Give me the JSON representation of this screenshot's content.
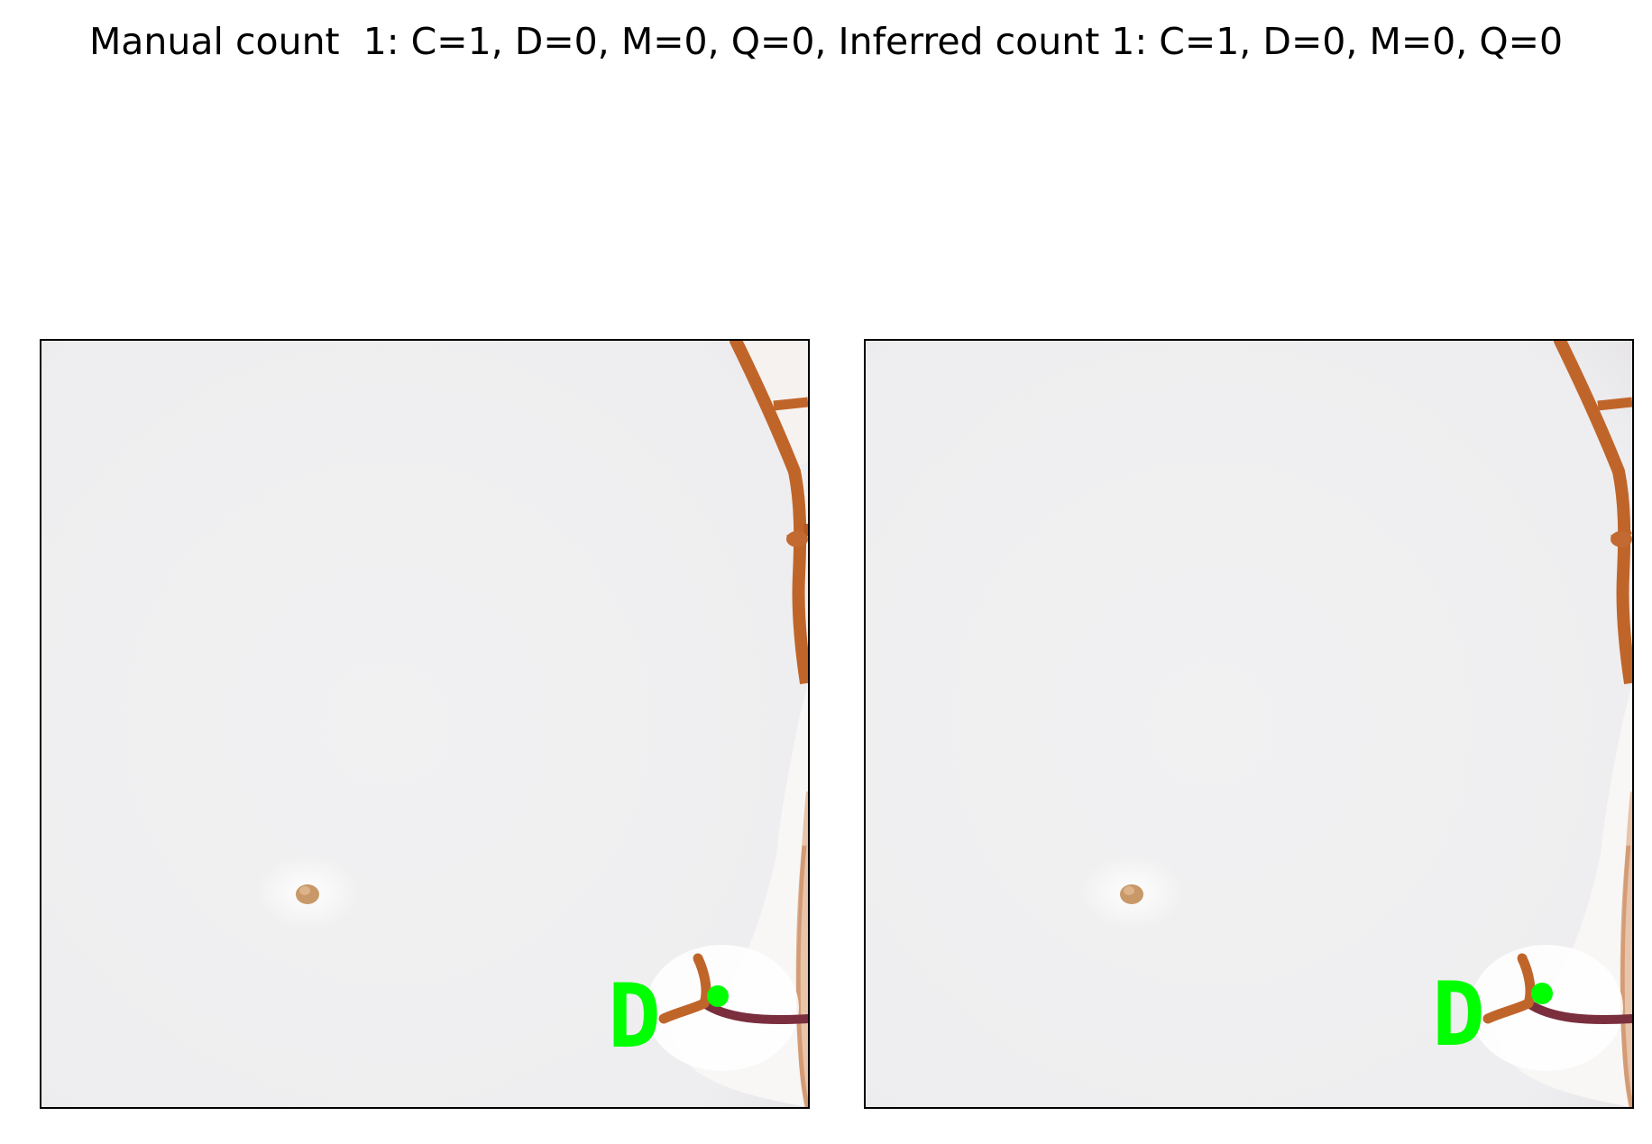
{
  "figure": {
    "title": "Manual count  1: C=1, D=0, M=0, Q=0, Inferred count 1: C=1, D=0, M=0, Q=0"
  },
  "panels": [
    {
      "id": "manual",
      "detection": {
        "label": "D",
        "marker_color": "#00ff00"
      }
    },
    {
      "id": "inferred",
      "detection": {
        "label": "D",
        "marker_color": "#00ff00"
      }
    }
  ],
  "colors": {
    "background": "#f0f0f1",
    "root": "#c0652a",
    "root_dark": "#7a2e3e",
    "seed": "#c89868",
    "annotation": "#00ff00"
  }
}
